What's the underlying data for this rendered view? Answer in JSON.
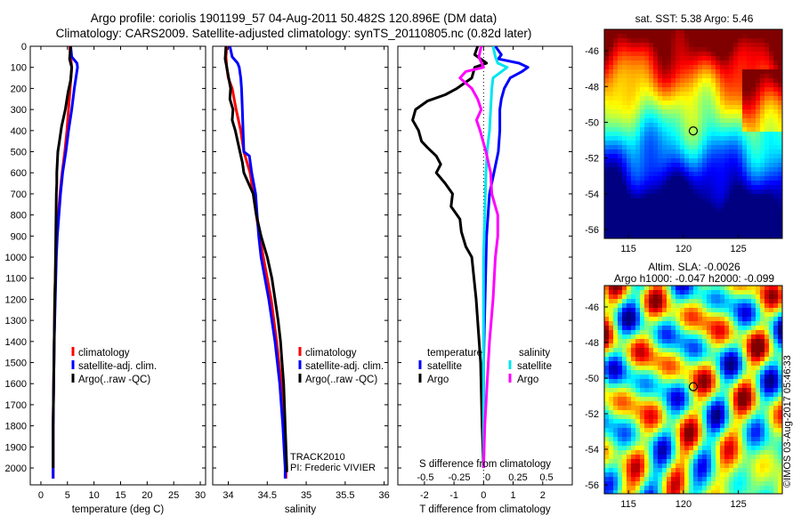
{
  "header": {
    "line1": "Argo profile: coriolis 1901199_57 04-Aug-2011 50.482S 120.896E (DM data)",
    "line2": "Climatology: CARS2009. Satellite-adjusted climatology: synTS_20110805.nc (0.82d later)"
  },
  "chart_data": [
    {
      "type": "line",
      "id": "temperature",
      "xlabel": "temperature (deg C)",
      "xlim": [
        -2,
        31
      ],
      "ylim": [
        2080,
        0
      ],
      "xticks": [
        "0",
        "5",
        "10",
        "15",
        "20",
        "25",
        "30"
      ],
      "xtick_values": [
        0,
        5,
        10,
        15,
        20,
        25,
        30
      ],
      "yticks": [
        "0",
        "100",
        "200",
        "300",
        "400",
        "500",
        "600",
        "700",
        "800",
        "900",
        "1000",
        "1100",
        "1200",
        "1300",
        "1400",
        "1500",
        "1600",
        "1700",
        "1800",
        "1900",
        "2000"
      ],
      "ytick_values": [
        0,
        100,
        200,
        300,
        400,
        500,
        600,
        700,
        800,
        900,
        1000,
        1100,
        1200,
        1300,
        1400,
        1500,
        1600,
        1700,
        1800,
        1900,
        2000
      ],
      "legend": [
        "climatology",
        "satellite-adj. clim.",
        "Argo(..raw -QC)"
      ],
      "series": [
        {
          "name": "climatology",
          "color": "#ff0000",
          "depth": [
            0,
            100,
            200,
            300,
            400,
            500,
            600,
            700,
            800,
            900,
            1000,
            1200,
            1400,
            1600,
            1800,
            2000,
            2050
          ],
          "values": [
            5.4,
            5.8,
            5.5,
            5.2,
            4.9,
            4.5,
            4.0,
            3.6,
            3.3,
            3.0,
            2.8,
            2.6,
            2.5,
            2.4,
            2.3,
            2.3,
            2.3
          ]
        },
        {
          "name": "satellite-adj. clim.",
          "color": "#0000ff",
          "depth": [
            0,
            50,
            80,
            100,
            200,
            300,
            400,
            500,
            600,
            700,
            800,
            900,
            1000,
            1200,
            1400,
            1600,
            1800,
            2000,
            2050
          ],
          "values": [
            5.6,
            5.8,
            6.8,
            6.9,
            6.3,
            5.8,
            5.2,
            4.7,
            4.1,
            3.7,
            3.4,
            3.1,
            2.9,
            2.7,
            2.5,
            2.4,
            2.3,
            2.3,
            2.3
          ]
        },
        {
          "name": "Argo(..raw -QC)",
          "color": "#000000",
          "depth": [
            0,
            60,
            100,
            160,
            220,
            300,
            380,
            450,
            500,
            550,
            600,
            650,
            700,
            800,
            900,
            1000,
            1100,
            1200,
            1300,
            1400,
            1500,
            1600,
            1700,
            1800,
            1900,
            2000
          ],
          "values": [
            5.6,
            5.4,
            5.8,
            5.6,
            5.1,
            4.6,
            3.9,
            3.5,
            3.2,
            3.1,
            3.0,
            3.0,
            2.9,
            2.85,
            2.8,
            2.75,
            2.7,
            2.6,
            2.55,
            2.5,
            2.45,
            2.4,
            2.35,
            2.3,
            2.3,
            2.3
          ]
        }
      ]
    },
    {
      "type": "line",
      "id": "salinity",
      "xlabel": "salinity",
      "xlim": [
        33.8,
        36.05
      ],
      "ylim": [
        2080,
        0
      ],
      "xticks": [
        "34",
        "34.5",
        "35",
        "35.5",
        "36"
      ],
      "xtick_values": [
        34,
        34.5,
        35,
        35.5,
        36
      ],
      "legend": [
        "climatology",
        "satellite-adj. clim.",
        "Argo(..raw -QC)"
      ],
      "series": [
        {
          "name": "climatology",
          "color": "#ff0000",
          "depth": [
            0,
            50,
            100,
            150,
            200,
            300,
            400,
            500,
            600,
            700,
            800,
            900,
            1000,
            1200,
            1400,
            1600,
            1800,
            2000,
            2050
          ],
          "values": [
            33.98,
            33.97,
            33.98,
            34.0,
            34.05,
            34.1,
            34.16,
            34.2,
            34.28,
            34.32,
            34.36,
            34.4,
            34.45,
            34.55,
            34.62,
            34.68,
            34.72,
            34.74,
            34.74
          ]
        },
        {
          "name": "satellite-adj. clim.",
          "color": "#0000ff",
          "depth": [
            0,
            50,
            80,
            100,
            150,
            200,
            300,
            400,
            500,
            520,
            600,
            700,
            800,
            900,
            1000,
            1200,
            1400,
            1600,
            1800,
            2000,
            2050
          ],
          "values": [
            34.02,
            34.05,
            34.12,
            34.14,
            34.16,
            34.17,
            34.18,
            34.19,
            34.2,
            34.27,
            34.3,
            34.35,
            34.37,
            34.39,
            34.42,
            34.52,
            34.6,
            34.66,
            34.7,
            34.73,
            34.73
          ]
        },
        {
          "name": "Argo(..raw -QC)",
          "color": "#000000",
          "depth": [
            0,
            60,
            100,
            140,
            200,
            250,
            300,
            350,
            400,
            450,
            500,
            550,
            600,
            650,
            700,
            800,
            900,
            1000,
            1100,
            1200,
            1300,
            1400,
            1500,
            1600,
            1700,
            1800,
            1900,
            2000,
            2020
          ],
          "values": [
            33.97,
            33.96,
            33.98,
            34.0,
            34.03,
            34.02,
            34.06,
            34.05,
            34.09,
            34.12,
            34.15,
            34.18,
            34.2,
            34.26,
            34.32,
            34.36,
            34.42,
            34.5,
            34.56,
            34.6,
            34.64,
            34.67,
            34.69,
            34.71,
            34.72,
            34.73,
            34.74,
            34.75,
            34.75
          ]
        }
      ],
      "annotations": [
        "TRACK2010",
        "PI: Frederic VIVIER"
      ]
    },
    {
      "type": "line",
      "id": "difference",
      "xlabel": "T difference from climatology",
      "top_xlabel": "S difference from climatology",
      "xlim": [
        -2.9,
        3.0
      ],
      "ylim": [
        2080,
        0
      ],
      "xticks": [
        "-2",
        "-1",
        "0",
        "1",
        "2"
      ],
      "xtick_values": [
        -2,
        -1,
        0,
        1,
        2
      ],
      "s_xticks": [
        "-0.5",
        "-0.25",
        "0",
        "0.25",
        "0.5"
      ],
      "s_xtick_values": [
        -0.5,
        -0.25,
        0,
        0.25,
        0.5
      ],
      "legend_groups": [
        {
          "title": "temperature",
          "items": [
            "satellite",
            "Argo"
          ]
        },
        {
          "title": "salinity",
          "items": [
            "satellite",
            "Argo"
          ]
        }
      ],
      "series": [
        {
          "name": "temperature satellite",
          "color": "#0000ff",
          "depth": [
            0,
            40,
            60,
            80,
            100,
            120,
            150,
            200,
            250,
            300,
            400,
            500,
            600,
            700,
            900,
            1200,
            1500,
            1800,
            2000
          ],
          "values": [
            0.4,
            0.6,
            0.5,
            1.2,
            1.5,
            1.3,
            0.9,
            0.7,
            0.6,
            0.55,
            0.55,
            0.5,
            0.35,
            0.2,
            0.1,
            0.05,
            0.0,
            0.0,
            0.0
          ]
        },
        {
          "name": "temperature Argo",
          "color": "#000000",
          "depth": [
            0,
            40,
            80,
            100,
            150,
            200,
            230,
            260,
            300,
            350,
            400,
            450,
            480,
            520,
            560,
            600,
            650,
            700,
            760,
            820,
            880,
            950,
            1000,
            1200,
            1500,
            1800,
            2000
          ],
          "values": [
            -0.2,
            -0.3,
            0.1,
            -0.3,
            -0.4,
            -0.9,
            -1.3,
            -1.9,
            -2.3,
            -2.4,
            -2.2,
            -2.1,
            -1.9,
            -1.6,
            -1.45,
            -1.6,
            -1.3,
            -1.05,
            -1.1,
            -0.8,
            -0.75,
            -0.6,
            -0.4,
            -0.25,
            -0.1,
            -0.05,
            0.0
          ]
        },
        {
          "name": "salinity satellite",
          "color": "#00e5ee",
          "depth": [
            0,
            50,
            80,
            100,
            150,
            200,
            300,
            400,
            500,
            600,
            800,
            1000,
            1500,
            2000
          ],
          "values": [
            0.08,
            0.1,
            0.12,
            0.2,
            0.08,
            0.07,
            0.06,
            0.05,
            0.03,
            0.02,
            0.01,
            0.0,
            0.0,
            0.0
          ]
        },
        {
          "name": "salinity Argo",
          "color": "#ff00ff",
          "depth": [
            0,
            50,
            100,
            120,
            150,
            200,
            250,
            300,
            350,
            400,
            500,
            600,
            700,
            800,
            900,
            1000,
            1100,
            1200,
            1400,
            1600,
            1800,
            2000
          ],
          "values": [
            -0.02,
            -0.04,
            0.0,
            -0.15,
            -0.2,
            -0.1,
            -0.05,
            -0.02,
            -0.06,
            -0.03,
            0.02,
            0.06,
            0.07,
            0.12,
            0.12,
            0.1,
            0.09,
            0.08,
            0.05,
            0.03,
            0.01,
            0.0
          ]
        }
      ]
    },
    {
      "type": "heatmap",
      "id": "sst-map",
      "title": "sat. SST: 5.38 Argo: 5.46",
      "xticks": [
        "115",
        "120",
        "125"
      ],
      "xtick_values": [
        115,
        120,
        125
      ],
      "yticks": [
        "-46",
        "-48",
        "-50",
        "-52",
        "-54",
        "-56"
      ],
      "ytick_values": [
        -46,
        -48,
        -50,
        -52,
        -54,
        -56
      ],
      "xlim": [
        112.8,
        129
      ],
      "ylim": [
        -56.5,
        -44.8
      ],
      "marker": {
        "lon": 120.896,
        "lat": -50.482
      }
    },
    {
      "type": "heatmap",
      "id": "sla-map",
      "title": "Altim. SLA: -0.0026",
      "subtitle": "Argo h1000: -0.047 h2000: -0.099",
      "xticks": [
        "115",
        "120",
        "125"
      ],
      "xtick_values": [
        115,
        120,
        125
      ],
      "yticks": [
        "-46",
        "-48",
        "-50",
        "-52",
        "-54",
        "-56"
      ],
      "ytick_values": [
        -46,
        -48,
        -50,
        -52,
        -54,
        -56
      ],
      "xlim": [
        112.8,
        129
      ],
      "ylim": [
        -56.5,
        -44.8
      ],
      "marker": {
        "lon": 120.896,
        "lat": -50.482
      }
    }
  ],
  "footer": {
    "credit": "©IMOS 03-Aug-2017 05:46:33"
  },
  "colors": {
    "climatology": "#ff0000",
    "satellite": "#0000ff",
    "argo": "#000000",
    "sal_satellite": "#00e5ee",
    "sal_argo": "#ff00ff"
  }
}
